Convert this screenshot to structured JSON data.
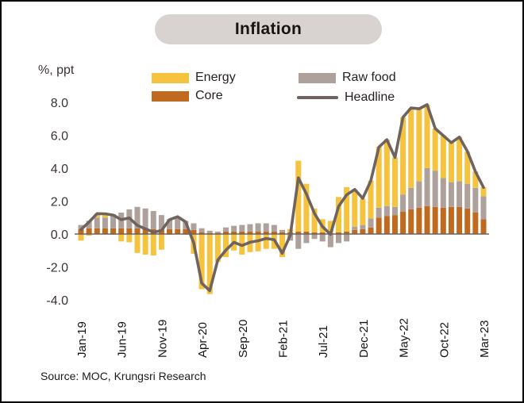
{
  "title": "Inflation",
  "axis_unit_label": "%, ppt",
  "source": "Source: MOC, Krungsri Research",
  "colors": {
    "energy": "#F5C33E",
    "core": "#C06A1F",
    "raw_food": "#AEA09B",
    "headline": "#6E635E",
    "title_pill_bg": "#D8D2D1",
    "zero_line": "#6E635E",
    "axis_text": "#3A3333"
  },
  "legend": [
    {
      "label": "Energy",
      "swatch": "bar",
      "color_key": "energy"
    },
    {
      "label": "Core",
      "swatch": "bar",
      "color_key": "core"
    },
    {
      "label": "Raw food",
      "swatch": "bar",
      "color_key": "raw_food"
    },
    {
      "label": "Headline",
      "swatch": "line",
      "color_key": "headline"
    }
  ],
  "chart_data": {
    "type": "bar",
    "subtype": "stacked-bar-with-line",
    "title": "Inflation",
    "ylabel": "%, ppt",
    "ylim": [
      -4.0,
      8.4
    ],
    "yticks": [
      8,
      6,
      4,
      2,
      0,
      -2,
      -4
    ],
    "grid": false,
    "legend_position": "top",
    "categories": [
      "Jan-19",
      "Feb-19",
      "Mar-19",
      "Apr-19",
      "May-19",
      "Jun-19",
      "Jul-19",
      "Aug-19",
      "Sep-19",
      "Oct-19",
      "Nov-19",
      "Dec-19",
      "Jan-20",
      "Feb-20",
      "Mar-20",
      "Apr-20",
      "May-20",
      "Jun-20",
      "Jul-20",
      "Aug-20",
      "Sep-20",
      "Oct-20",
      "Nov-20",
      "Dec-20",
      "Jan-21",
      "Feb-21",
      "Mar-21",
      "Apr-21",
      "May-21",
      "Jun-21",
      "Jul-21",
      "Aug-21",
      "Sep-21",
      "Oct-21",
      "Nov-21",
      "Dec-21",
      "Jan-22",
      "Feb-22",
      "Mar-22",
      "Apr-22",
      "May-22",
      "Jun-22",
      "Jul-22",
      "Aug-22",
      "Sep-22",
      "Oct-22",
      "Nov-22",
      "Dec-22",
      "Jan-23",
      "Feb-23",
      "Mar-23"
    ],
    "x_ticks": [
      {
        "index": 0,
        "label": "Jan-19"
      },
      {
        "index": 5,
        "label": "Jun-19"
      },
      {
        "index": 10,
        "label": "Nov-19"
      },
      {
        "index": 15,
        "label": "Apr-20"
      },
      {
        "index": 20,
        "label": "Sep-20"
      },
      {
        "index": 25,
        "label": "Feb-21"
      },
      {
        "index": 30,
        "label": "Jul-21"
      },
      {
        "index": 35,
        "label": "Dec-21"
      },
      {
        "index": 40,
        "label": "May-22"
      },
      {
        "index": 45,
        "label": "Oct-22"
      },
      {
        "index": 50,
        "label": "Mar-23"
      }
    ],
    "series": [
      {
        "key": "core",
        "name": "Core",
        "kind": "bar-stack",
        "values": [
          0.3,
          0.35,
          0.35,
          0.35,
          0.35,
          0.35,
          0.35,
          0.35,
          0.3,
          0.3,
          0.3,
          0.3,
          0.3,
          0.3,
          0.25,
          0.1,
          0.05,
          0.05,
          0.15,
          0.15,
          0.15,
          0.15,
          0.15,
          0.15,
          0.15,
          0.1,
          0.1,
          0.15,
          0.15,
          0.1,
          0.1,
          0.05,
          0.1,
          0.15,
          0.25,
          0.3,
          0.4,
          1.0,
          1.1,
          1.15,
          1.35,
          1.5,
          1.6,
          1.7,
          1.65,
          1.6,
          1.65,
          1.65,
          1.55,
          1.3,
          0.9
        ]
      },
      {
        "key": "raw_food",
        "name": "Raw food",
        "kind": "bar-stack",
        "values": [
          0.25,
          0.45,
          0.65,
          0.65,
          0.85,
          0.95,
          1.15,
          1.3,
          1.25,
          1.1,
          0.85,
          0.6,
          0.65,
          0.5,
          0.4,
          0.25,
          0.15,
          0.1,
          0.25,
          0.35,
          0.4,
          0.45,
          0.5,
          0.5,
          0.4,
          0.15,
          -0.4,
          -0.9,
          -0.55,
          -0.3,
          -0.45,
          -0.8,
          -0.55,
          -0.45,
          0.2,
          0.25,
          0.55,
          0.6,
          0.6,
          0.5,
          1.05,
          1.3,
          1.6,
          2.3,
          2.2,
          1.8,
          1.5,
          1.55,
          1.5,
          1.5,
          1.4
        ]
      },
      {
        "key": "energy",
        "name": "Energy",
        "kind": "bar-stack",
        "values": [
          -0.4,
          -0.1,
          0.25,
          0.25,
          -0.05,
          -0.45,
          -0.5,
          -1.15,
          -1.25,
          -1.3,
          -0.95,
          -0.05,
          0.1,
          -0.05,
          -1.2,
          -3.35,
          -3.65,
          -1.7,
          -1.4,
          -1.0,
          -1.25,
          -1.1,
          -1.05,
          -0.9,
          -0.9,
          -1.4,
          0.2,
          4.3,
          2.9,
          1.45,
          0.8,
          0.75,
          2.15,
          2.7,
          2.25,
          1.6,
          2.3,
          3.7,
          4.05,
          3.0,
          4.7,
          4.85,
          4.4,
          3.85,
          2.55,
          2.6,
          2.4,
          2.7,
          1.95,
          1.0,
          0.55
        ]
      },
      {
        "key": "headline",
        "name": "Headline",
        "kind": "line",
        "values": [
          0.27,
          0.73,
          1.24,
          1.23,
          1.15,
          0.87,
          0.98,
          0.52,
          0.32,
          0.11,
          0.21,
          0.87,
          1.05,
          0.74,
          -0.54,
          -2.99,
          -3.44,
          -1.57,
          -0.98,
          -0.5,
          -0.7,
          -0.5,
          -0.41,
          -0.27,
          -0.34,
          -1.17,
          -0.08,
          3.41,
          2.44,
          1.25,
          0.45,
          -0.02,
          1.68,
          2.38,
          2.71,
          2.17,
          3.23,
          5.28,
          5.73,
          4.65,
          7.1,
          7.66,
          7.61,
          7.86,
          6.41,
          5.98,
          5.55,
          5.89,
          5.02,
          3.79,
          2.83
        ]
      }
    ]
  }
}
